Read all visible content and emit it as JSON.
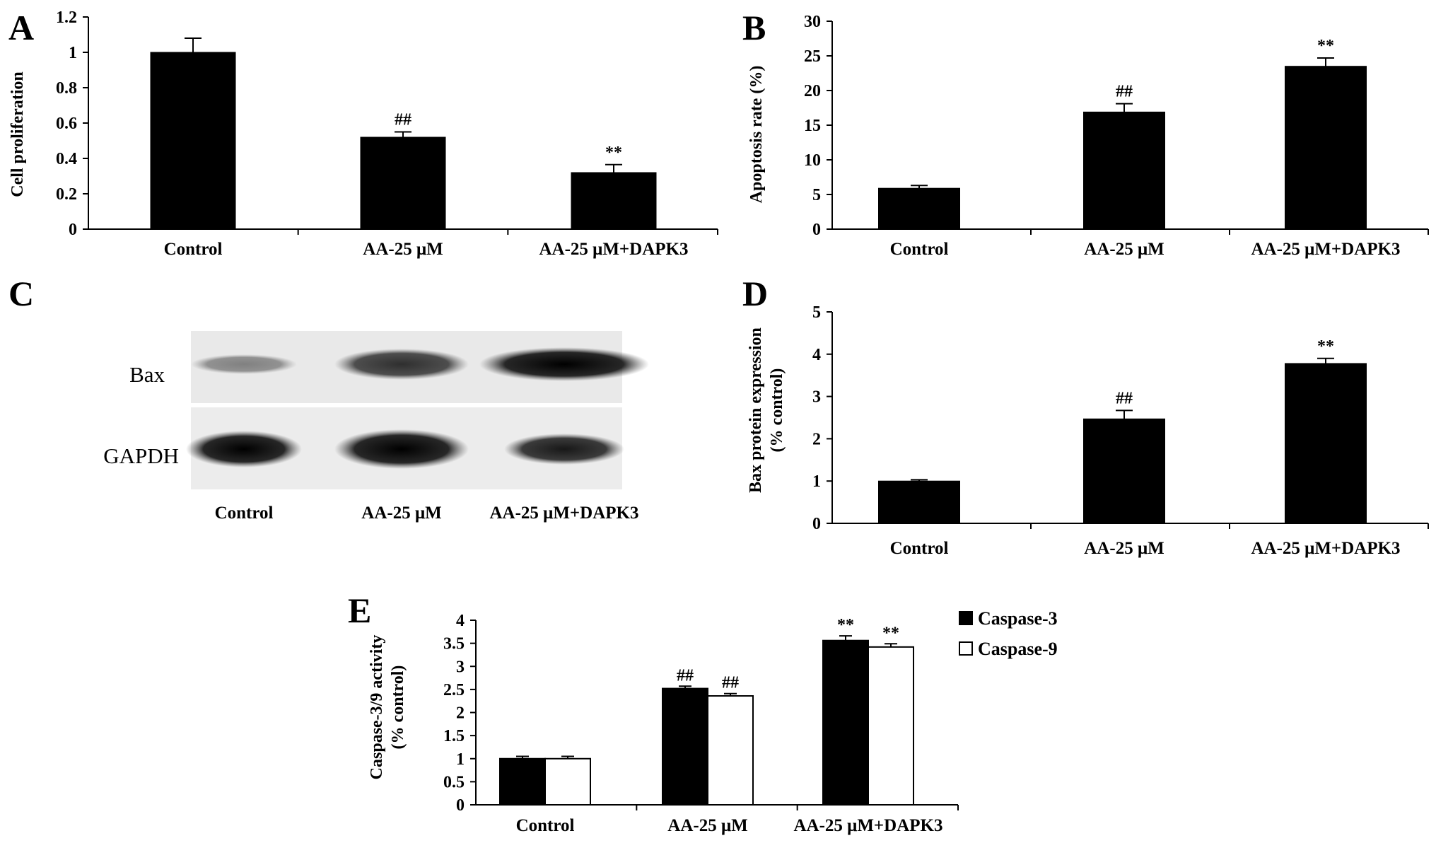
{
  "figure": {
    "panels": [
      "A",
      "B",
      "C",
      "D",
      "E"
    ]
  },
  "blot": {
    "letter": "C",
    "rows": [
      "Bax",
      "GAPDH"
    ],
    "lanes": [
      "Control",
      "AA-25 μM",
      "AA-25 μM+DAPK3"
    ],
    "band_intensity": {
      "Bax": [
        0.45,
        0.8,
        1.0
      ],
      "GAPDH": [
        1.0,
        1.0,
        0.9
      ]
    }
  },
  "chart_data": [
    {
      "panel": "A",
      "type": "bar",
      "ylabel": "Cell proliferation",
      "ylim": [
        0,
        1.2
      ],
      "yticks": [
        "0",
        "0.2",
        "0.4",
        "0.6",
        "0.8",
        "1",
        "1.2"
      ],
      "ytick_values": [
        0,
        0.2,
        0.4,
        0.6,
        0.8,
        1.0,
        1.2
      ],
      "categories": [
        "Control",
        "AA-25 μM",
        "AA-25 μM+DAPK3"
      ],
      "values": [
        1.0,
        0.52,
        0.32
      ],
      "errors": [
        0.08,
        0.03,
        0.045
      ],
      "annotations": [
        "",
        "##",
        "**"
      ],
      "color": "#000000"
    },
    {
      "panel": "B",
      "type": "bar",
      "ylabel": "Apoptosis rate (%)",
      "ylim": [
        0,
        30
      ],
      "yticks": [
        "0",
        "5",
        "10",
        "15",
        "20",
        "25",
        "30"
      ],
      "ytick_values": [
        0,
        5,
        10,
        15,
        20,
        25,
        30
      ],
      "categories": [
        "Control",
        "AA-25 μM",
        "AA-25 μM+DAPK3"
      ],
      "values": [
        5.9,
        16.9,
        23.5
      ],
      "errors": [
        0.4,
        1.2,
        1.2
      ],
      "annotations": [
        "",
        "##",
        "**"
      ],
      "color": "#000000"
    },
    {
      "panel": "D",
      "type": "bar",
      "ylabel": [
        "Bax protein expression",
        "(% control)"
      ],
      "ylim": [
        0,
        5
      ],
      "yticks": [
        "0",
        "1",
        "2",
        "3",
        "4",
        "5"
      ],
      "ytick_values": [
        0,
        1,
        2,
        3,
        4,
        5
      ],
      "categories": [
        "Control",
        "AA-25 μM",
        "AA-25 μM+DAPK3"
      ],
      "values": [
        1.0,
        2.47,
        3.78
      ],
      "errors": [
        0.03,
        0.2,
        0.12
      ],
      "annotations": [
        "",
        "##",
        "**"
      ],
      "color": "#000000"
    },
    {
      "panel": "E",
      "type": "bar",
      "ylabel": [
        "Caspase-3/9 activity",
        "(% control)"
      ],
      "ylim": [
        0,
        4
      ],
      "yticks": [
        "0",
        "0.5",
        "1",
        "1.5",
        "2",
        "2.5",
        "3",
        "3.5",
        "4"
      ],
      "ytick_values": [
        0,
        0.5,
        1,
        1.5,
        2,
        2.5,
        3,
        3.5,
        4
      ],
      "categories": [
        "Control",
        "AA-25 μM",
        "AA-25 μM+DAPK3"
      ],
      "series": [
        {
          "name": "Caspase-3",
          "values": [
            1.0,
            2.52,
            3.56
          ],
          "errors": [
            0.05,
            0.05,
            0.1
          ],
          "annotations": [
            "",
            "##",
            "**"
          ],
          "color": "#000000"
        },
        {
          "name": "Caspase-9",
          "values": [
            1.0,
            2.36,
            3.42
          ],
          "errors": [
            0.05,
            0.05,
            0.07
          ],
          "annotations": [
            "",
            "##",
            "**"
          ],
          "color": "#ffffff"
        }
      ],
      "legend": "right"
    }
  ]
}
